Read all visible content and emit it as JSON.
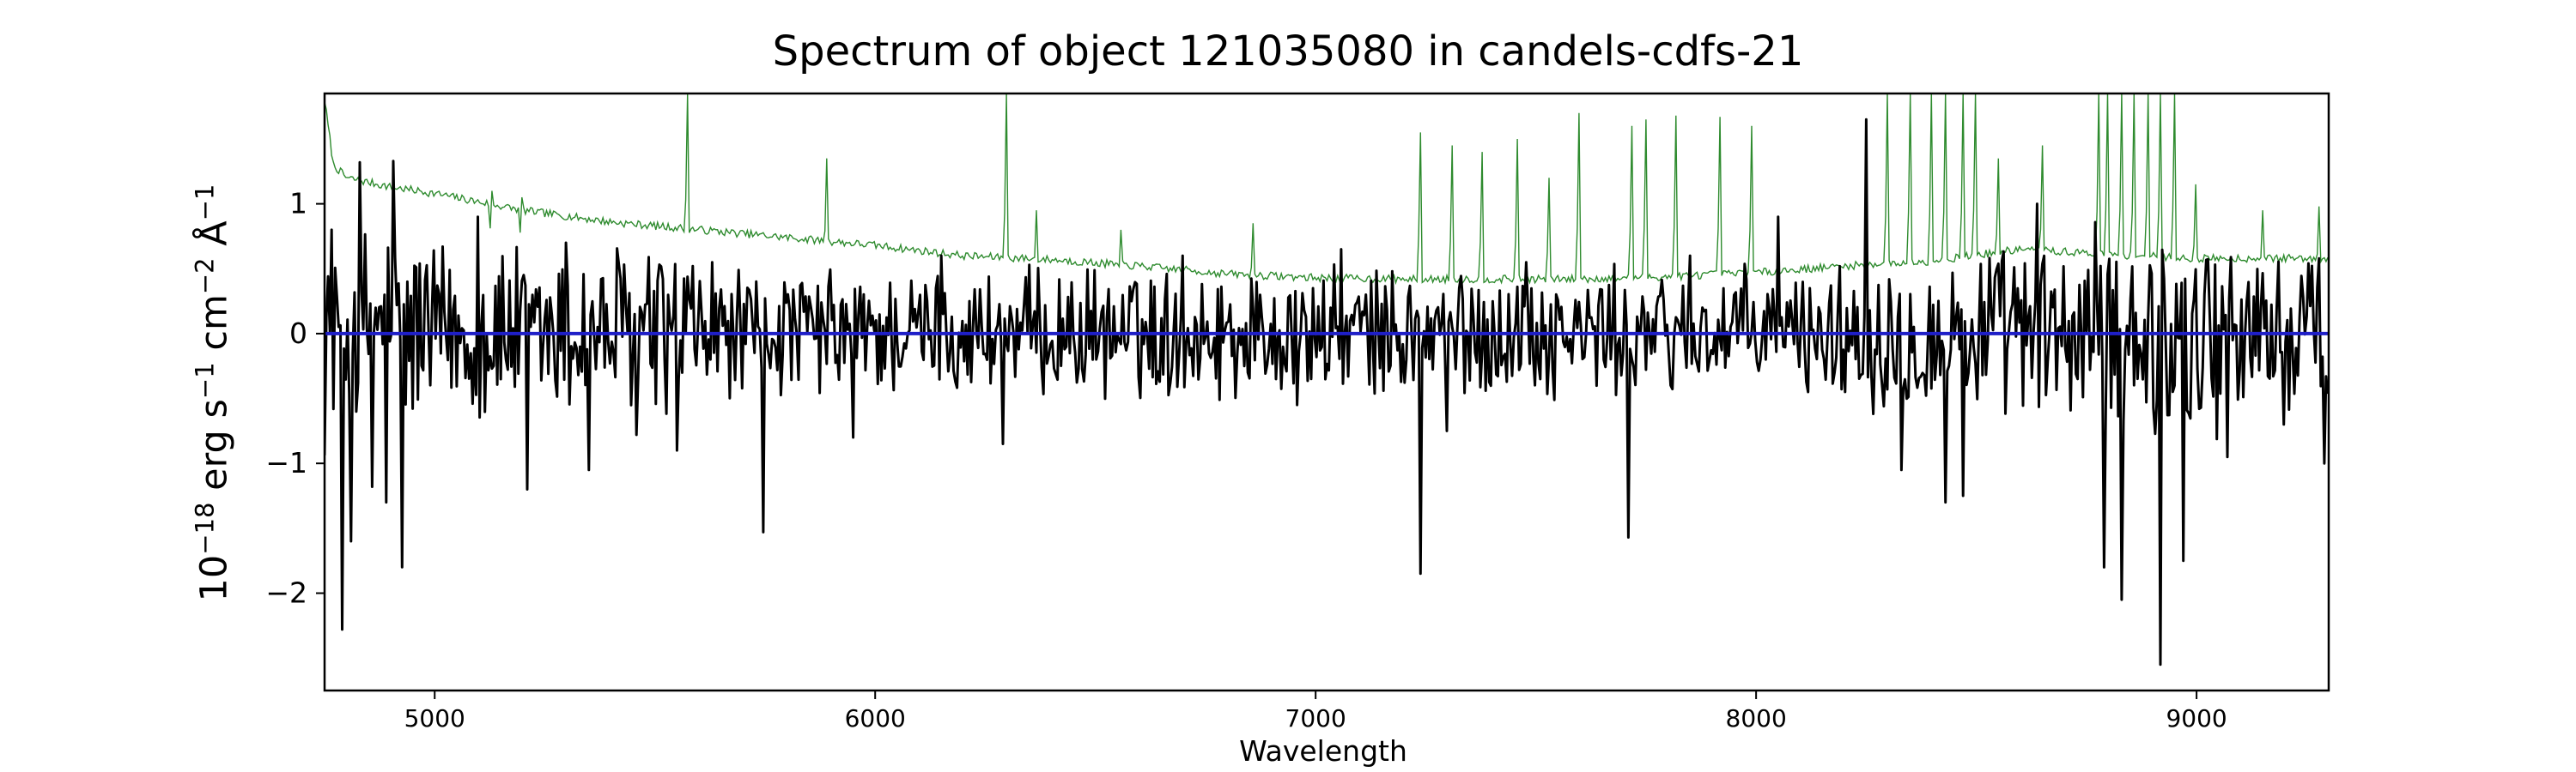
{
  "chart_data": {
    "type": "line",
    "title": "Spectrum of object 121035080 in candels-cdfs-21",
    "xlabel": "Wavelength",
    "ylabel": {
      "prefix": "10",
      "exp1": "−18",
      "mid1": " erg s",
      "exp2": "−1",
      "mid2": " cm",
      "exp3": "−2",
      "mid3": " Å",
      "exp4": "−1"
    },
    "xlim": [
      4750,
      9300
    ],
    "ylim": [
      -2.75,
      1.85
    ],
    "xticks": [
      5000,
      6000,
      7000,
      8000,
      9000
    ],
    "yticks": [
      -2,
      -1,
      0,
      1
    ],
    "grid": false,
    "series": [
      {
        "role": "model",
        "color": "#2e8b2e",
        "anchors": [
          [
            4750,
            1.8
          ],
          [
            4770,
            1.3
          ],
          [
            4800,
            1.2
          ],
          [
            4900,
            1.13
          ],
          [
            5000,
            1.08
          ],
          [
            5200,
            0.95
          ],
          [
            5400,
            0.86
          ],
          [
            5600,
            0.8
          ],
          [
            5800,
            0.74
          ],
          [
            6000,
            0.68
          ],
          [
            6200,
            0.6
          ],
          [
            6400,
            0.57
          ],
          [
            6600,
            0.52
          ],
          [
            6800,
            0.46
          ],
          [
            7000,
            0.43
          ],
          [
            7200,
            0.42
          ],
          [
            7400,
            0.42
          ],
          [
            7600,
            0.42
          ],
          [
            7800,
            0.44
          ],
          [
            8000,
            0.47
          ],
          [
            8200,
            0.52
          ],
          [
            8400,
            0.56
          ],
          [
            8600,
            0.65
          ],
          [
            8800,
            0.61
          ],
          [
            9000,
            0.58
          ],
          [
            9300,
            0.58
          ]
        ],
        "spikes": [
          [
            5130,
            1.1
          ],
          [
            5200,
            1.05
          ],
          [
            5575,
            1.85
          ],
          [
            5890,
            1.35
          ],
          [
            6300,
            1.85
          ],
          [
            6365,
            0.95
          ],
          [
            6560,
            0.8
          ],
          [
            6860,
            0.85
          ],
          [
            7240,
            1.55
          ],
          [
            7310,
            1.45
          ],
          [
            7380,
            1.4
          ],
          [
            7460,
            1.5
          ],
          [
            7530,
            1.2
          ],
          [
            7600,
            1.7
          ],
          [
            7720,
            1.6
          ],
          [
            7750,
            1.65
          ],
          [
            7820,
            1.68
          ],
          [
            7920,
            1.67
          ],
          [
            7990,
            1.6
          ],
          [
            8300,
            1.85
          ],
          [
            8350,
            1.85
          ],
          [
            8400,
            1.85
          ],
          [
            8430,
            1.85
          ],
          [
            8470,
            1.85
          ],
          [
            8500,
            1.85
          ],
          [
            8550,
            1.35
          ],
          [
            8650,
            1.45
          ],
          [
            8780,
            1.85
          ],
          [
            8800,
            1.85
          ],
          [
            8830,
            1.85
          ],
          [
            8860,
            1.85
          ],
          [
            8890,
            1.85
          ],
          [
            8920,
            1.85
          ],
          [
            8950,
            1.85
          ],
          [
            9000,
            1.15
          ],
          [
            9150,
            0.95
          ],
          [
            9280,
            0.98
          ]
        ]
      },
      {
        "role": "spectrum",
        "color": "#000000",
        "spikes": [
          [
            4765,
            0.8
          ],
          [
            4790,
            -2.28
          ],
          [
            4810,
            -1.6
          ],
          [
            4830,
            1.32
          ],
          [
            4860,
            -1.18
          ],
          [
            4890,
            -1.3
          ],
          [
            4905,
            1.33
          ],
          [
            4925,
            -1.8
          ],
          [
            5100,
            0.9
          ],
          [
            5210,
            -1.2
          ],
          [
            5300,
            0.7
          ],
          [
            5350,
            -1.05
          ],
          [
            5460,
            -0.78
          ],
          [
            5550,
            -0.9
          ],
          [
            5630,
            0.55
          ],
          [
            5745,
            -1.53
          ],
          [
            5950,
            -0.8
          ],
          [
            6150,
            0.6
          ],
          [
            6290,
            -0.85
          ],
          [
            6700,
            0.6
          ],
          [
            6960,
            -0.55
          ],
          [
            7060,
            0.65
          ],
          [
            7240,
            -1.85
          ],
          [
            7300,
            -0.75
          ],
          [
            7480,
            0.55
          ],
          [
            7710,
            -1.57
          ],
          [
            7850,
            0.6
          ],
          [
            8050,
            0.9
          ],
          [
            8250,
            1.65
          ],
          [
            8330,
            -1.05
          ],
          [
            8430,
            -1.3
          ],
          [
            8470,
            -1.25
          ],
          [
            8640,
            1.0
          ],
          [
            8790,
            -1.8
          ],
          [
            8830,
            -2.05
          ],
          [
            8920,
            -2.55
          ],
          [
            8970,
            -1.75
          ],
          [
            9070,
            -0.95
          ],
          [
            9200,
            -0.7
          ],
          [
            9280,
            0.58
          ],
          [
            9290,
            -1.0
          ]
        ]
      },
      {
        "role": "zero",
        "color": "#1f1fc8",
        "anchors": [
          [
            4750,
            0.0
          ],
          [
            9300,
            0.0
          ]
        ]
      }
    ]
  }
}
